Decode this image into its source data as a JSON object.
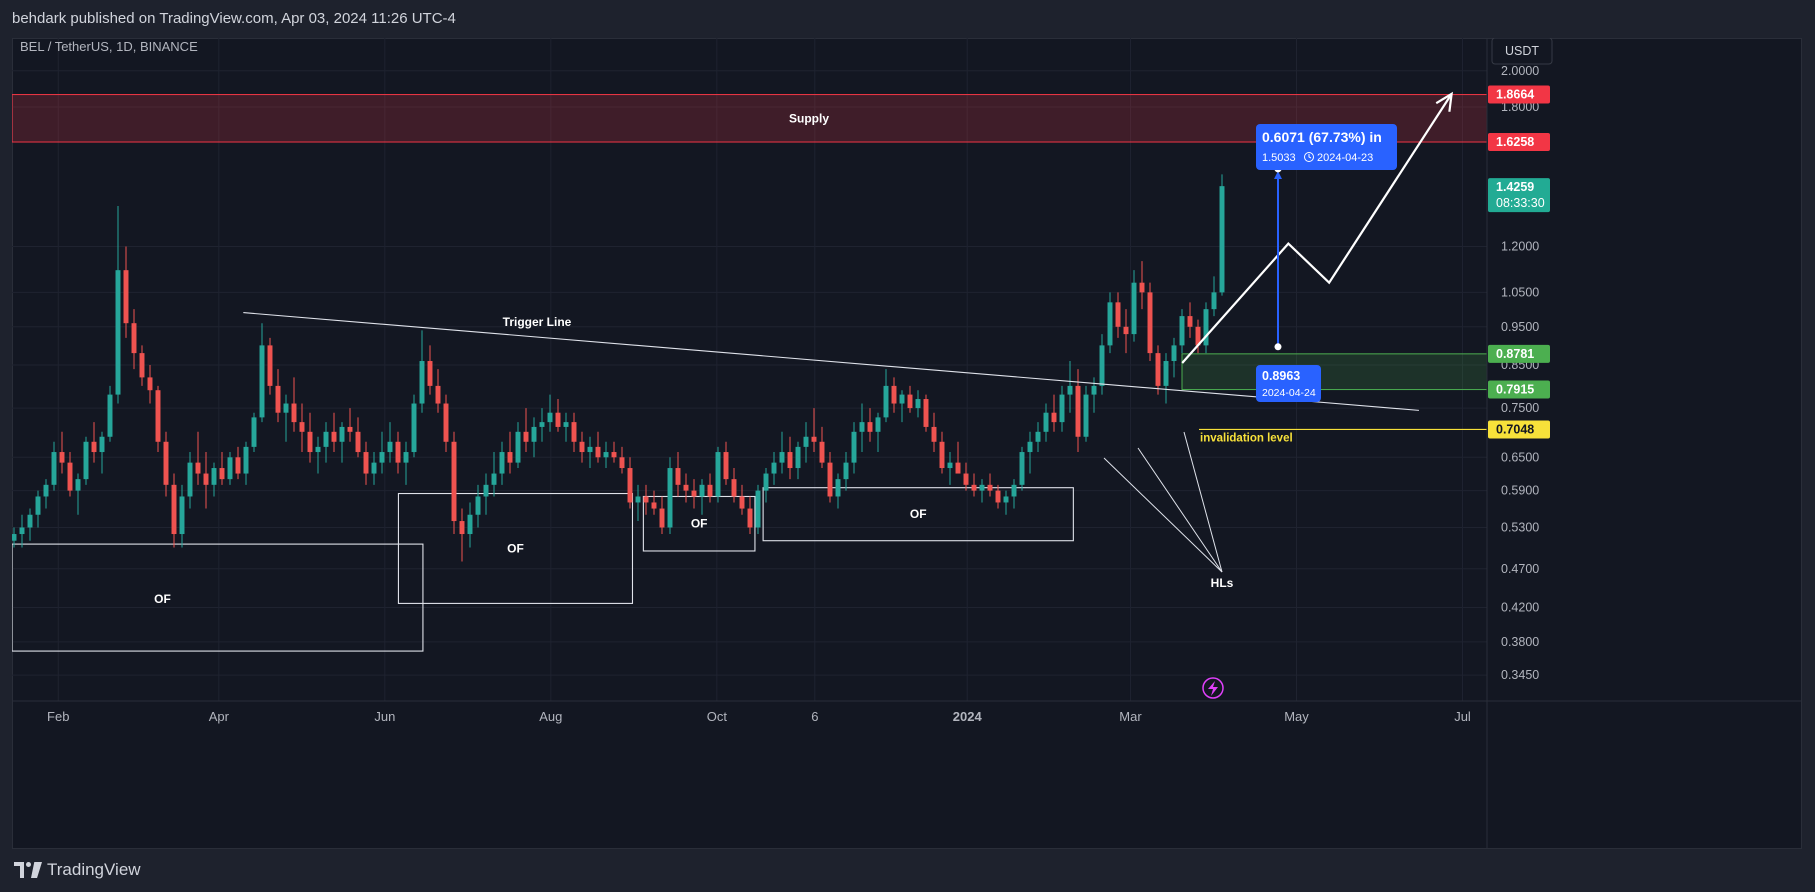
{
  "header": {
    "published": "behdark published on TradingView.com, Apr 03, 2024 11:26 UTC-4"
  },
  "footer": {
    "brand": "TradingView"
  },
  "chart_data": {
    "type": "candlestick",
    "symbol_label": "BEL / TetherUS, 1D, BINANCE",
    "currency_button": "USDT",
    "y_scale": "log",
    "ylim": [
      0.32,
      2.2
    ],
    "y_ticks": [
      "2.0000",
      "1.8000",
      "1.2000",
      "1.0500",
      "0.9500",
      "0.8500",
      "0.7500",
      "0.6500",
      "0.5900",
      "0.5300",
      "0.4700",
      "0.4200",
      "0.3800",
      "0.3450"
    ],
    "x_ticks": [
      "Feb",
      "Apr",
      "Jun",
      "Aug",
      "Oct",
      "6",
      "2024",
      "Mar",
      "May",
      "Jul"
    ],
    "x_range": [
      "2023-01-15",
      "2024-07-10"
    ],
    "price_badges": [
      {
        "value": "1.8664",
        "color": "#f23645"
      },
      {
        "value": "1.6258",
        "color": "#f23645"
      },
      {
        "value": "1.4259",
        "sub": "08:33:30",
        "color": "#22ab94"
      },
      {
        "value": "0.8781",
        "color": "#4caf50"
      },
      {
        "value": "0.7915",
        "color": "#4caf50"
      },
      {
        "value": "0.7048",
        "color": "#f7e13a"
      }
    ],
    "supply_zone": {
      "label": "Supply",
      "top": 1.8664,
      "bottom": 1.6258
    },
    "demand_zone": {
      "top": 0.8781,
      "bottom": 0.7915
    },
    "invalidation": {
      "label": "invalidation level",
      "value": 0.7048
    },
    "trigger_line": {
      "label": "Trigger Line",
      "from": [
        "2023-04-10",
        0.99
      ],
      "to": [
        "2024-06-15",
        0.745
      ]
    },
    "of_boxes": [
      {
        "label": "OF",
        "x0": "2023-01-15",
        "x1": "2023-06-15",
        "top": 0.505,
        "bottom": 0.37
      },
      {
        "label": "OF",
        "x0": "2023-06-06",
        "x1": "2023-08-31",
        "top": 0.585,
        "bottom": 0.425
      },
      {
        "label": "OF",
        "x0": "2023-09-04",
        "x1": "2023-10-15",
        "top": 0.58,
        "bottom": 0.495
      },
      {
        "label": "OF",
        "x0": "2023-10-18",
        "x1": "2024-02-09",
        "top": 0.595,
        "bottom": 0.51
      }
    ],
    "hls_label": "HLs",
    "measure": {
      "line1": "0.6071 (67.73%) in",
      "line2_price": "1.5033",
      "line2_date": "2024-04-23",
      "from_price": "0.8963",
      "from_date": "2024-04-24",
      "from_value": 0.8963,
      "to_value": 1.5033
    },
    "projection": [
      [
        "2024-03-20",
        0.855
      ],
      [
        "2024-04-28",
        1.21
      ],
      [
        "2024-05-13",
        1.08
      ],
      [
        "2024-06-27",
        1.87
      ]
    ],
    "candles_ohlc": [
      [
        0.51,
        0.53,
        0.5,
        0.52
      ],
      [
        0.52,
        0.55,
        0.5,
        0.53
      ],
      [
        0.53,
        0.56,
        0.51,
        0.55
      ],
      [
        0.55,
        0.59,
        0.53,
        0.58
      ],
      [
        0.58,
        0.61,
        0.56,
        0.6
      ],
      [
        0.6,
        0.68,
        0.59,
        0.66
      ],
      [
        0.66,
        0.7,
        0.62,
        0.64
      ],
      [
        0.64,
        0.66,
        0.58,
        0.59
      ],
      [
        0.59,
        0.62,
        0.55,
        0.61
      ],
      [
        0.61,
        0.69,
        0.6,
        0.68
      ],
      [
        0.68,
        0.72,
        0.64,
        0.66
      ],
      [
        0.66,
        0.7,
        0.62,
        0.69
      ],
      [
        0.69,
        0.8,
        0.68,
        0.78
      ],
      [
        0.78,
        1.35,
        0.76,
        1.12
      ],
      [
        1.12,
        1.2,
        0.92,
        0.96
      ],
      [
        0.96,
        1.0,
        0.84,
        0.88
      ],
      [
        0.88,
        0.9,
        0.8,
        0.82
      ],
      [
        0.82,
        0.85,
        0.76,
        0.79
      ],
      [
        0.79,
        0.8,
        0.66,
        0.68
      ],
      [
        0.68,
        0.7,
        0.58,
        0.6
      ],
      [
        0.6,
        0.62,
        0.5,
        0.52
      ],
      [
        0.52,
        0.6,
        0.5,
        0.58
      ],
      [
        0.58,
        0.66,
        0.56,
        0.64
      ],
      [
        0.64,
        0.7,
        0.6,
        0.62
      ],
      [
        0.62,
        0.66,
        0.56,
        0.6
      ],
      [
        0.6,
        0.64,
        0.58,
        0.63
      ],
      [
        0.63,
        0.66,
        0.6,
        0.61
      ],
      [
        0.61,
        0.66,
        0.6,
        0.65
      ],
      [
        0.65,
        0.67,
        0.61,
        0.62
      ],
      [
        0.62,
        0.68,
        0.6,
        0.67
      ],
      [
        0.67,
        0.74,
        0.66,
        0.73
      ],
      [
        0.73,
        0.96,
        0.72,
        0.9
      ],
      [
        0.9,
        0.92,
        0.78,
        0.8
      ],
      [
        0.8,
        0.84,
        0.72,
        0.74
      ],
      [
        0.74,
        0.78,
        0.68,
        0.76
      ],
      [
        0.76,
        0.82,
        0.7,
        0.72
      ],
      [
        0.72,
        0.76,
        0.66,
        0.7
      ],
      [
        0.7,
        0.74,
        0.64,
        0.66
      ],
      [
        0.66,
        0.69,
        0.62,
        0.67
      ],
      [
        0.67,
        0.72,
        0.64,
        0.7
      ],
      [
        0.7,
        0.74,
        0.66,
        0.68
      ],
      [
        0.68,
        0.72,
        0.64,
        0.71
      ],
      [
        0.71,
        0.75,
        0.68,
        0.7
      ],
      [
        0.7,
        0.73,
        0.65,
        0.66
      ],
      [
        0.66,
        0.68,
        0.6,
        0.62
      ],
      [
        0.62,
        0.66,
        0.6,
        0.64
      ],
      [
        0.64,
        0.7,
        0.62,
        0.66
      ],
      [
        0.66,
        0.72,
        0.64,
        0.68
      ],
      [
        0.68,
        0.7,
        0.62,
        0.64
      ],
      [
        0.64,
        0.68,
        0.6,
        0.66
      ],
      [
        0.66,
        0.78,
        0.65,
        0.76
      ],
      [
        0.76,
        0.94,
        0.74,
        0.86
      ],
      [
        0.86,
        0.9,
        0.78,
        0.8
      ],
      [
        0.8,
        0.84,
        0.74,
        0.76
      ],
      [
        0.76,
        0.78,
        0.66,
        0.68
      ],
      [
        0.68,
        0.7,
        0.52,
        0.54
      ],
      [
        0.54,
        0.56,
        0.48,
        0.52
      ],
      [
        0.52,
        0.57,
        0.5,
        0.55
      ],
      [
        0.55,
        0.6,
        0.53,
        0.58
      ],
      [
        0.58,
        0.62,
        0.55,
        0.6
      ],
      [
        0.6,
        0.66,
        0.58,
        0.62
      ],
      [
        0.62,
        0.68,
        0.6,
        0.66
      ],
      [
        0.66,
        0.7,
        0.62,
        0.64
      ],
      [
        0.64,
        0.72,
        0.63,
        0.7
      ],
      [
        0.7,
        0.75,
        0.66,
        0.68
      ],
      [
        0.68,
        0.73,
        0.65,
        0.71
      ],
      [
        0.71,
        0.75,
        0.68,
        0.72
      ],
      [
        0.72,
        0.78,
        0.7,
        0.74
      ],
      [
        0.74,
        0.77,
        0.7,
        0.71
      ],
      [
        0.71,
        0.74,
        0.68,
        0.72
      ],
      [
        0.72,
        0.74,
        0.66,
        0.68
      ],
      [
        0.68,
        0.7,
        0.64,
        0.66
      ],
      [
        0.66,
        0.69,
        0.63,
        0.67
      ],
      [
        0.67,
        0.7,
        0.64,
        0.65
      ],
      [
        0.65,
        0.68,
        0.63,
        0.66
      ],
      [
        0.66,
        0.68,
        0.64,
        0.65
      ],
      [
        0.65,
        0.67,
        0.62,
        0.63
      ],
      [
        0.63,
        0.65,
        0.56,
        0.57
      ],
      [
        0.57,
        0.6,
        0.54,
        0.58
      ],
      [
        0.58,
        0.6,
        0.55,
        0.57
      ],
      [
        0.57,
        0.59,
        0.55,
        0.56
      ],
      [
        0.56,
        0.58,
        0.52,
        0.53
      ],
      [
        0.53,
        0.65,
        0.52,
        0.63
      ],
      [
        0.63,
        0.66,
        0.58,
        0.6
      ],
      [
        0.6,
        0.62,
        0.57,
        0.59
      ],
      [
        0.59,
        0.61,
        0.56,
        0.58
      ],
      [
        0.58,
        0.61,
        0.55,
        0.6
      ],
      [
        0.6,
        0.62,
        0.57,
        0.58
      ],
      [
        0.58,
        0.67,
        0.57,
        0.66
      ],
      [
        0.66,
        0.68,
        0.6,
        0.61
      ],
      [
        0.61,
        0.63,
        0.57,
        0.58
      ],
      [
        0.58,
        0.6,
        0.55,
        0.56
      ],
      [
        0.56,
        0.58,
        0.52,
        0.53
      ],
      [
        0.53,
        0.6,
        0.52,
        0.59
      ],
      [
        0.59,
        0.63,
        0.57,
        0.62
      ],
      [
        0.62,
        0.66,
        0.6,
        0.64
      ],
      [
        0.64,
        0.7,
        0.62,
        0.66
      ],
      [
        0.66,
        0.69,
        0.61,
        0.63
      ],
      [
        0.63,
        0.68,
        0.61,
        0.67
      ],
      [
        0.67,
        0.72,
        0.64,
        0.69
      ],
      [
        0.69,
        0.75,
        0.66,
        0.68
      ],
      [
        0.68,
        0.71,
        0.63,
        0.64
      ],
      [
        0.64,
        0.66,
        0.57,
        0.58
      ],
      [
        0.58,
        0.62,
        0.56,
        0.61
      ],
      [
        0.61,
        0.66,
        0.59,
        0.64
      ],
      [
        0.64,
        0.72,
        0.62,
        0.7
      ],
      [
        0.7,
        0.76,
        0.66,
        0.72
      ],
      [
        0.72,
        0.75,
        0.68,
        0.7
      ],
      [
        0.7,
        0.74,
        0.66,
        0.73
      ],
      [
        0.73,
        0.84,
        0.72,
        0.8
      ],
      [
        0.8,
        0.82,
        0.74,
        0.76
      ],
      [
        0.76,
        0.79,
        0.72,
        0.78
      ],
      [
        0.78,
        0.8,
        0.74,
        0.75
      ],
      [
        0.75,
        0.79,
        0.73,
        0.77
      ],
      [
        0.77,
        0.78,
        0.7,
        0.71
      ],
      [
        0.71,
        0.74,
        0.66,
        0.68
      ],
      [
        0.68,
        0.7,
        0.62,
        0.63
      ],
      [
        0.63,
        0.66,
        0.6,
        0.64
      ],
      [
        0.64,
        0.68,
        0.62,
        0.62
      ],
      [
        0.62,
        0.64,
        0.59,
        0.6
      ],
      [
        0.6,
        0.62,
        0.58,
        0.59
      ],
      [
        0.59,
        0.61,
        0.57,
        0.6
      ],
      [
        0.6,
        0.62,
        0.58,
        0.59
      ],
      [
        0.59,
        0.6,
        0.56,
        0.57
      ],
      [
        0.57,
        0.59,
        0.55,
        0.58
      ],
      [
        0.58,
        0.61,
        0.56,
        0.6
      ],
      [
        0.6,
        0.67,
        0.59,
        0.66
      ],
      [
        0.66,
        0.7,
        0.62,
        0.68
      ],
      [
        0.68,
        0.72,
        0.66,
        0.7
      ],
      [
        0.7,
        0.76,
        0.68,
        0.74
      ],
      [
        0.74,
        0.78,
        0.7,
        0.72
      ],
      [
        0.72,
        0.8,
        0.7,
        0.78
      ],
      [
        0.78,
        0.86,
        0.74,
        0.8
      ],
      [
        0.8,
        0.84,
        0.66,
        0.69
      ],
      [
        0.69,
        0.8,
        0.68,
        0.78
      ],
      [
        0.78,
        0.82,
        0.74,
        0.8
      ],
      [
        0.8,
        0.93,
        0.78,
        0.9
      ],
      [
        0.9,
        1.05,
        0.88,
        1.02
      ],
      [
        1.02,
        1.05,
        0.92,
        0.95
      ],
      [
        0.95,
        1.0,
        0.88,
        0.93
      ],
      [
        0.93,
        1.12,
        0.91,
        1.08
      ],
      [
        1.08,
        1.15,
        1.0,
        1.05
      ],
      [
        1.05,
        1.08,
        0.86,
        0.88
      ],
      [
        0.88,
        0.9,
        0.78,
        0.8
      ],
      [
        0.8,
        0.88,
        0.76,
        0.86
      ],
      [
        0.86,
        0.92,
        0.82,
        0.9
      ],
      [
        0.9,
        1.0,
        0.88,
        0.98
      ],
      [
        0.98,
        1.02,
        0.92,
        0.95
      ],
      [
        0.95,
        0.97,
        0.88,
        0.9
      ],
      [
        0.9,
        1.02,
        0.88,
        1.0
      ],
      [
        1.0,
        1.1,
        0.98,
        1.05
      ],
      [
        1.05,
        1.48,
        1.04,
        1.43
      ]
    ]
  }
}
